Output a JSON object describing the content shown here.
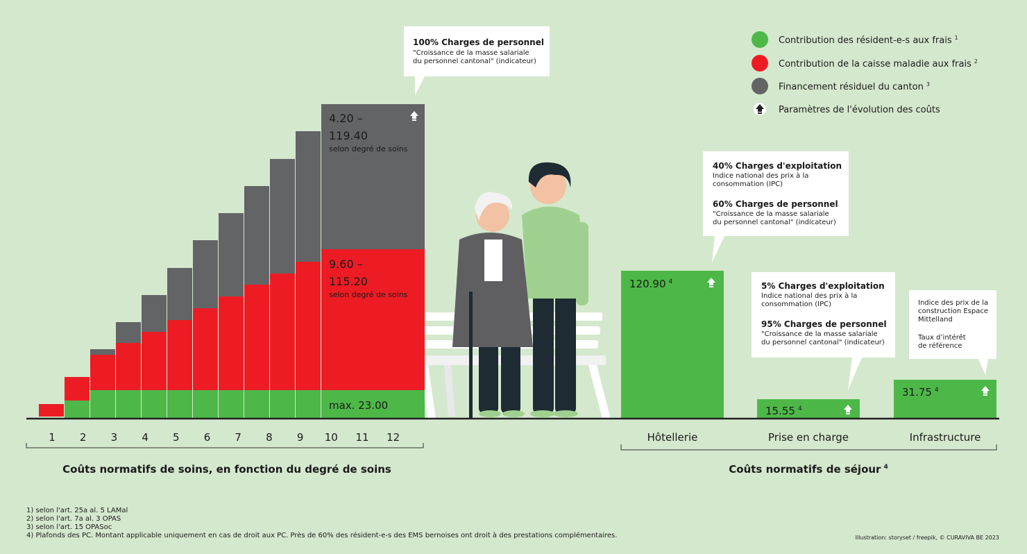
{
  "legend": [
    {
      "label": "Contribution des résident-e-s aux frais",
      "note": "1"
    },
    {
      "label": "Contribution de la caisse maladie aux frais",
      "note": "2"
    },
    {
      "label": "Financement résiduel du canton",
      "note": "3"
    },
    {
      "label": "Paramètres de l'évolution des coûts"
    }
  ],
  "care_costs": {
    "gray_label": [
      "4.20 –",
      "119.40"
    ],
    "gray_sub": "selon degré de soins",
    "red_label": [
      "9.60 –",
      "115.20"
    ],
    "red_sub": "selon degré de soins",
    "green_label": "max. 23.00",
    "degrees": [
      "1",
      "2",
      "3",
      "4",
      "5",
      "6",
      "7",
      "8",
      "9",
      "10",
      "11",
      "12"
    ],
    "caption": "Coûts normatifs de soins, en fonction du degré de soins",
    "callout": {
      "title": "100% Charges de personnel",
      "lines": [
        "\"Croissance de la masse salariale",
        "du personnel cantonal\" (indicateur)"
      ]
    }
  },
  "stay_costs": {
    "categories": [
      {
        "name": "Hôtellerie",
        "value": "120.90",
        "note": "4"
      },
      {
        "name": "Prise en charge",
        "value": "15.55",
        "note": "4"
      },
      {
        "name": "Infrastructure",
        "value": "31.75",
        "note": "4"
      }
    ],
    "caption": "Coûts normatifs de séjour",
    "caption_note": "4",
    "callouts": [
      {
        "blocks": [
          {
            "title": "40% Charges d'exploitation",
            "lines": [
              "Indice national des prix à la",
              "consommation (IPC)"
            ]
          },
          {
            "title": "60% Charges de personnel",
            "lines": [
              "\"Croissance de la masse salariale",
              "du personnel cantonal\" (indicateur)"
            ]
          }
        ]
      },
      {
        "blocks": [
          {
            "title": "5% Charges d'exploitation",
            "lines": [
              "Indice national des prix à la",
              "consommation (IPC)"
            ]
          },
          {
            "title": "95% Charges de personnel",
            "lines": [
              "\"Croissance de la masse salariale",
              "du personnel cantonal\" (indicateur)"
            ]
          }
        ]
      },
      {
        "blocks": [
          {
            "lines": [
              "Indice des prix de la",
              "construction Espace",
              "Mittelland"
            ]
          },
          {
            "lines": [
              "Taux d’intérêt",
              "de référence"
            ]
          }
        ]
      }
    ]
  },
  "footnotes": [
    "1) selon l'art. 25a al. 5 LAMal",
    "2) selon l'art. 7a al. 3 OPAS",
    "3) selon l'art. 15 OPASoc",
    "4) Plafonds des PC. Montant applicable uniquement en cas de droit aux PC. Près de 60% des résident-e-s des EMS bernoises ont droit à des prestations complémentaires."
  ],
  "credit": "Illustration: storyset / freepik, © CURAVIVA BE 2023"
}
